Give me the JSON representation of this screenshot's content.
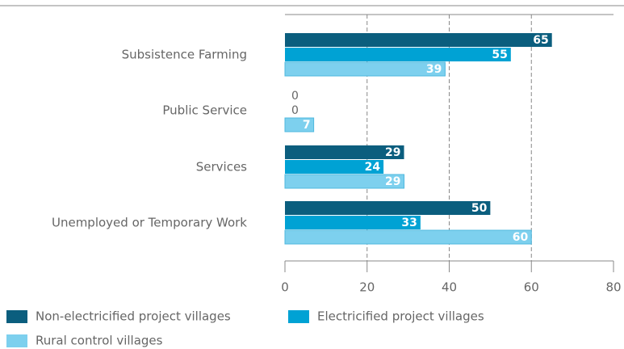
{
  "chart_data": {
    "type": "barh",
    "categories": [
      "Subsistence Farming",
      "Public Service",
      "Services",
      "Unemployed or Temporary Work"
    ],
    "series": [
      {
        "name": "Non-electricified project villages",
        "color": "#0b5e7e",
        "values": [
          65,
          0,
          29,
          50
        ]
      },
      {
        "name": "Electricified project villages",
        "color": "#00a2d4",
        "values": [
          55,
          0,
          24,
          33
        ]
      },
      {
        "name": "Rural control villages",
        "color": "#7dd0ee",
        "values": [
          39,
          7,
          29,
          60
        ]
      }
    ],
    "xlim": [
      0,
      80
    ],
    "xticks": [
      0,
      20,
      40,
      60,
      80
    ],
    "grid": true
  }
}
